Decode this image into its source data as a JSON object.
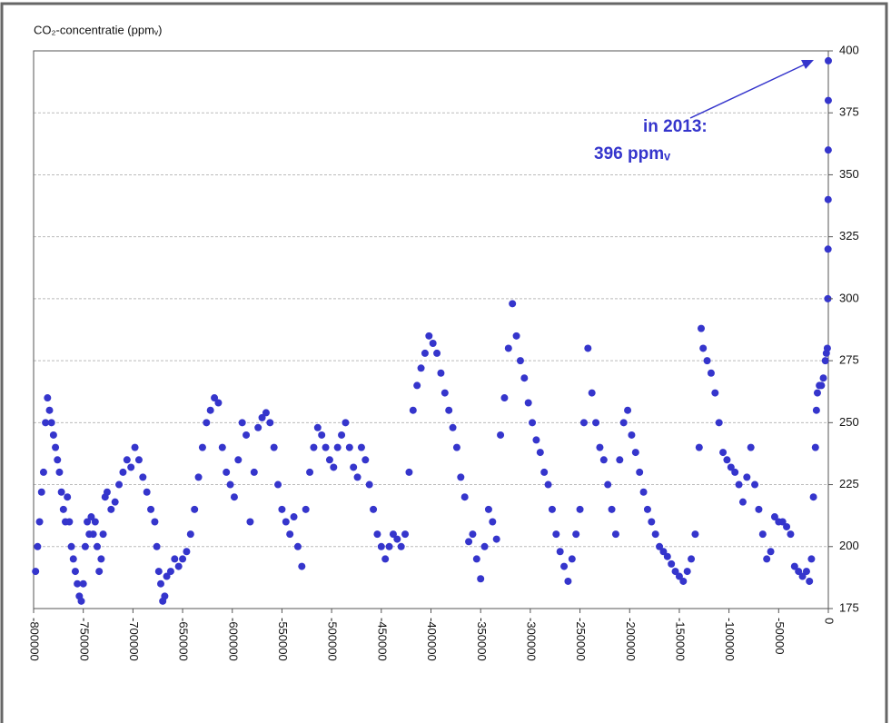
{
  "chart_data": {
    "type": "scatter",
    "title": "CO₂-concentratie (ppmᵥ)",
    "annotations": [
      "in 2013:",
      "396 ppmᵥ"
    ],
    "xlim": [
      -800000,
      0
    ],
    "xticks": [
      -800000,
      -750000,
      -700000,
      -650000,
      -600000,
      -550000,
      -500000,
      -450000,
      -400000,
      -350000,
      -300000,
      -250000,
      -200000,
      -150000,
      -100000,
      -50000,
      0
    ],
    "ylim": [
      175,
      400
    ],
    "yticks": [
      175,
      200,
      225,
      250,
      275,
      300,
      325,
      350,
      375,
      400
    ],
    "grid": true,
    "series": [
      {
        "color": "#3535cc",
        "x": [
          -798000,
          -796000,
          -794000,
          -792000,
          -790000,
          -788000,
          -786000,
          -784000,
          -782000,
          -780000,
          -778000,
          -776000,
          -774000,
          -772000,
          -770000,
          -768000,
          -766000,
          -764000,
          -762000,
          -760000,
          -758000,
          -756000,
          -754000,
          -752000,
          -750000,
          -748000,
          -746000,
          -744000,
          -742000,
          -740000,
          -738000,
          -736000,
          -734000,
          -732000,
          -730000,
          -728000,
          -726000,
          -722000,
          -718000,
          -714000,
          -710000,
          -706000,
          -702000,
          -698000,
          -694000,
          -690000,
          -686000,
          -682000,
          -678000,
          -676000,
          -674000,
          -672000,
          -670000,
          -668000,
          -666000,
          -662000,
          -658000,
          -654000,
          -650000,
          -646000,
          -642000,
          -638000,
          -634000,
          -630000,
          -626000,
          -622000,
          -618000,
          -614000,
          -610000,
          -606000,
          -602000,
          -598000,
          -594000,
          -590000,
          -586000,
          -582000,
          -578000,
          -574000,
          -570000,
          -566000,
          -562000,
          -558000,
          -554000,
          -550000,
          -546000,
          -542000,
          -538000,
          -534000,
          -530000,
          -526000,
          -522000,
          -518000,
          -514000,
          -510000,
          -506000,
          -502000,
          -498000,
          -494000,
          -490000,
          -486000,
          -482000,
          -478000,
          -474000,
          -470000,
          -466000,
          -462000,
          -458000,
          -454000,
          -450000,
          -446000,
          -442000,
          -438000,
          -434000,
          -430000,
          -426000,
          -422000,
          -418000,
          -414000,
          -410000,
          -406000,
          -402000,
          -398000,
          -394000,
          -390000,
          -386000,
          -382000,
          -378000,
          -374000,
          -370000,
          -366000,
          -362000,
          -358000,
          -354000,
          -350000,
          -346000,
          -342000,
          -338000,
          -334000,
          -330000,
          -326000,
          -322000,
          -318000,
          -314000,
          -310000,
          -306000,
          -302000,
          -298000,
          -294000,
          -290000,
          -286000,
          -282000,
          -278000,
          -274000,
          -270000,
          -266000,
          -262000,
          -258000,
          -254000,
          -250000,
          -246000,
          -242000,
          -238000,
          -234000,
          -230000,
          -226000,
          -222000,
          -218000,
          -214000,
          -210000,
          -206000,
          -202000,
          -198000,
          -194000,
          -190000,
          -186000,
          -182000,
          -178000,
          -174000,
          -170000,
          -166000,
          -162000,
          -158000,
          -154000,
          -150000,
          -146000,
          -142000,
          -138000,
          -134000,
          -130000,
          -128000,
          -126000,
          -122000,
          -118000,
          -114000,
          -110000,
          -106000,
          -102000,
          -98000,
          -94000,
          -90000,
          -86000,
          -82000,
          -78000,
          -74000,
          -70000,
          -66000,
          -62000,
          -58000,
          -54000,
          -50000,
          -46000,
          -42000,
          -38000,
          -34000,
          -30000,
          -26000,
          -22000,
          -19000,
          -17000,
          -15000,
          -13000,
          -12000,
          -11000,
          -9000,
          -7000,
          -5000,
          -3000,
          -2000,
          -1000,
          -500,
          -300,
          -200,
          -100,
          -50,
          0
        ],
        "values": [
          190,
          200,
          210,
          222,
          230,
          250,
          260,
          255,
          250,
          245,
          240,
          235,
          230,
          222,
          215,
          210,
          220,
          210,
          200,
          195,
          190,
          185,
          180,
          178,
          185,
          200,
          210,
          205,
          212,
          205,
          210,
          200,
          190,
          195,
          205,
          220,
          222,
          215,
          218,
          225,
          230,
          235,
          232,
          240,
          235,
          228,
          222,
          215,
          210,
          200,
          190,
          185,
          178,
          180,
          188,
          190,
          195,
          192,
          195,
          198,
          205,
          215,
          228,
          240,
          250,
          255,
          260,
          258,
          240,
          230,
          225,
          220,
          235,
          250,
          245,
          210,
          230,
          248,
          252,
          254,
          250,
          240,
          225,
          215,
          210,
          205,
          212,
          200,
          192,
          215,
          230,
          240,
          248,
          245,
          240,
          235,
          232,
          240,
          245,
          250,
          240,
          232,
          228,
          240,
          235,
          225,
          215,
          205,
          200,
          195,
          200,
          205,
          203,
          200,
          205,
          230,
          255,
          265,
          272,
          278,
          285,
          282,
          278,
          270,
          262,
          255,
          248,
          240,
          228,
          220,
          202,
          205,
          195,
          187,
          200,
          215,
          210,
          203,
          245,
          260,
          280,
          298,
          285,
          275,
          268,
          258,
          250,
          243,
          238,
          230,
          225,
          215,
          205,
          198,
          192,
          186,
          195,
          205,
          215,
          250,
          280,
          262,
          250,
          240,
          235,
          225,
          215,
          205,
          235,
          250,
          255,
          245,
          238,
          230,
          222,
          215,
          210,
          205,
          200,
          198,
          196,
          193,
          190,
          188,
          186,
          190,
          195,
          205,
          240,
          288,
          280,
          275,
          270,
          262,
          250,
          238,
          235,
          232,
          230,
          225,
          218,
          228,
          240,
          225,
          215,
          205,
          195,
          198,
          212,
          210,
          210,
          208,
          205,
          192,
          190,
          188,
          190,
          186,
          195,
          220,
          240,
          255,
          262,
          265,
          265,
          268,
          275,
          278,
          280,
          300,
          320,
          340,
          360,
          380,
          396
        ]
      }
    ]
  }
}
